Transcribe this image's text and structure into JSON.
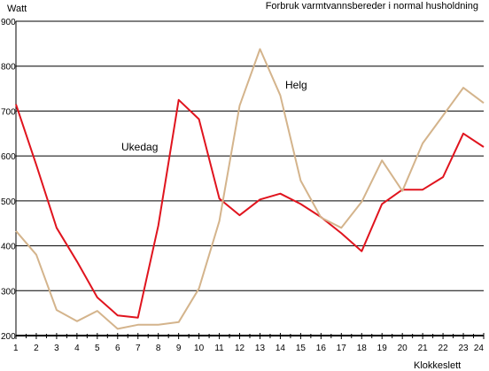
{
  "chart_data": {
    "type": "line",
    "title": "Forbruk varmtvannsbereder i normal husholdning",
    "xlabel": "Klokkeslett",
    "ylabel": "Watt",
    "x": [
      1,
      2,
      3,
      4,
      5,
      6,
      7,
      8,
      9,
      10,
      11,
      12,
      13,
      14,
      15,
      16,
      17,
      18,
      19,
      20,
      21,
      22,
      23,
      24
    ],
    "xlim": [
      1,
      24
    ],
    "ylim": [
      200,
      900
    ],
    "yticks": [
      200,
      300,
      400,
      500,
      600,
      700,
      800,
      900
    ],
    "grid": "horizontal",
    "series": [
      {
        "name": "Ukedag",
        "color": "#e0141e",
        "values": [
          715,
          580,
          440,
          365,
          285,
          245,
          240,
          445,
          725,
          682,
          505,
          468,
          503,
          516,
          493,
          464,
          428,
          388,
          493,
          525,
          525,
          553,
          650,
          620
        ]
      },
      {
        "name": "Helg",
        "color": "#d4b48c",
        "values": [
          433,
          380,
          257,
          232,
          255,
          215,
          224,
          224,
          230,
          305,
          455,
          712,
          838,
          735,
          545,
          463,
          440,
          498,
          590,
          522,
          628,
          690,
          752,
          718
        ]
      }
    ]
  }
}
